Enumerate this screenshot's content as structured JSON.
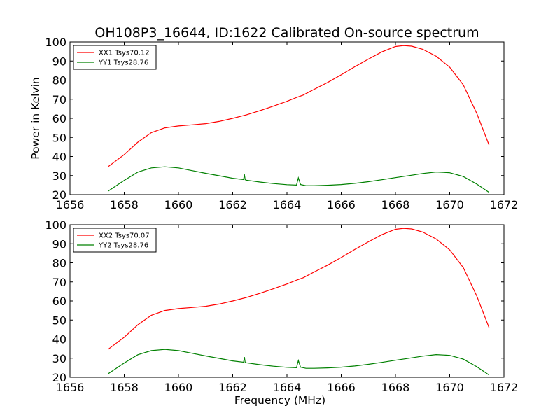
{
  "title": "OH108P3_16644, ID:1622 Calibrated On-source spectrum",
  "chart_data": [
    {
      "type": "line",
      "title": "OH108P3_16644, ID:1622 Calibrated On-source spectrum",
      "xlabel": "",
      "ylabel": "Power in Kelvin",
      "xlim": [
        1656,
        1672
      ],
      "ylim": [
        20,
        100
      ],
      "xticks": [
        "1656",
        "1658",
        "1660",
        "1662",
        "1664",
        "1666",
        "1668",
        "1670",
        "1672"
      ],
      "yticks": [
        "20",
        "30",
        "40",
        "50",
        "60",
        "70",
        "80",
        "90",
        "100"
      ],
      "grid": false,
      "legend_position": "top-left",
      "series": [
        {
          "name": "XX1 Tsys70.12",
          "color": "#ff0000",
          "points": [
            [
              1657.4,
              34.6
            ],
            [
              1658.0,
              41.0
            ],
            [
              1658.5,
              47.5
            ],
            [
              1659.0,
              52.5
            ],
            [
              1659.5,
              55.0
            ],
            [
              1660.0,
              56.0
            ],
            [
              1660.5,
              56.6
            ],
            [
              1661.0,
              57.2
            ],
            [
              1661.5,
              58.4
            ],
            [
              1662.0,
              60.0
            ],
            [
              1662.5,
              61.8
            ],
            [
              1663.0,
              64.0
            ],
            [
              1663.5,
              66.4
            ],
            [
              1664.0,
              68.9
            ],
            [
              1664.4,
              71.2
            ],
            [
              1664.6,
              72.2
            ],
            [
              1665.0,
              75.2
            ],
            [
              1665.5,
              78.8
            ],
            [
              1666.0,
              82.8
            ],
            [
              1666.5,
              87.0
            ],
            [
              1667.0,
              91.0
            ],
            [
              1667.5,
              94.8
            ],
            [
              1668.0,
              97.6
            ],
            [
              1668.3,
              98.1
            ],
            [
              1668.6,
              97.8
            ],
            [
              1669.0,
              96.2
            ],
            [
              1669.5,
              92.5
            ],
            [
              1670.0,
              86.8
            ],
            [
              1670.5,
              77.5
            ],
            [
              1671.0,
              62.5
            ],
            [
              1671.45,
              46.0
            ]
          ]
        },
        {
          "name": "YY1 Tsys28.76",
          "color": "#008000",
          "points": [
            [
              1657.4,
              21.8
            ],
            [
              1658.0,
              27.5
            ],
            [
              1658.5,
              31.8
            ],
            [
              1659.0,
              34.0
            ],
            [
              1659.5,
              34.6
            ],
            [
              1660.0,
              34.0
            ],
            [
              1660.5,
              32.6
            ],
            [
              1661.0,
              31.2
            ],
            [
              1661.5,
              29.9
            ],
            [
              1662.0,
              28.6
            ],
            [
              1662.4,
              27.9
            ],
            [
              1662.43,
              30.6
            ],
            [
              1662.46,
              27.8
            ],
            [
              1662.5,
              27.6
            ],
            [
              1663.0,
              26.6
            ],
            [
              1663.5,
              25.8
            ],
            [
              1664.0,
              25.2
            ],
            [
              1664.35,
              25.0
            ],
            [
              1664.42,
              28.8
            ],
            [
              1664.5,
              25.3
            ],
            [
              1664.7,
              24.7
            ],
            [
              1665.0,
              24.7
            ],
            [
              1665.5,
              24.9
            ],
            [
              1666.0,
              25.3
            ],
            [
              1666.5,
              25.9
            ],
            [
              1667.0,
              26.8
            ],
            [
              1667.5,
              27.8
            ],
            [
              1668.0,
              28.9
            ],
            [
              1668.5,
              30.0
            ],
            [
              1669.0,
              31.1
            ],
            [
              1669.5,
              31.9
            ],
            [
              1670.0,
              31.5
            ],
            [
              1670.5,
              29.5
            ],
            [
              1671.0,
              25.5
            ],
            [
              1671.45,
              21.2
            ]
          ]
        }
      ]
    },
    {
      "type": "line",
      "title": "",
      "xlabel": "Frequency (MHz)",
      "ylabel": "",
      "xlim": [
        1656,
        1672
      ],
      "ylim": [
        20,
        100
      ],
      "xticks": [
        "1656",
        "1658",
        "1660",
        "1662",
        "1664",
        "1666",
        "1668",
        "1670",
        "1672"
      ],
      "yticks": [
        "20",
        "30",
        "40",
        "50",
        "60",
        "70",
        "80",
        "90",
        "100"
      ],
      "grid": false,
      "legend_position": "top-left",
      "series": [
        {
          "name": "XX2 Tsys70.07",
          "color": "#ff0000",
          "points": [
            [
              1657.4,
              34.6
            ],
            [
              1658.0,
              41.0
            ],
            [
              1658.5,
              47.5
            ],
            [
              1659.0,
              52.5
            ],
            [
              1659.5,
              55.0
            ],
            [
              1660.0,
              56.0
            ],
            [
              1660.5,
              56.6
            ],
            [
              1661.0,
              57.2
            ],
            [
              1661.5,
              58.4
            ],
            [
              1662.0,
              60.0
            ],
            [
              1662.5,
              61.8
            ],
            [
              1663.0,
              64.0
            ],
            [
              1663.5,
              66.4
            ],
            [
              1664.0,
              68.9
            ],
            [
              1664.4,
              71.2
            ],
            [
              1664.6,
              72.2
            ],
            [
              1665.0,
              75.2
            ],
            [
              1665.5,
              78.8
            ],
            [
              1666.0,
              82.8
            ],
            [
              1666.5,
              87.0
            ],
            [
              1667.0,
              91.0
            ],
            [
              1667.5,
              94.8
            ],
            [
              1668.0,
              97.6
            ],
            [
              1668.3,
              98.1
            ],
            [
              1668.6,
              97.8
            ],
            [
              1669.0,
              96.2
            ],
            [
              1669.5,
              92.5
            ],
            [
              1670.0,
              86.8
            ],
            [
              1670.5,
              77.5
            ],
            [
              1671.0,
              62.5
            ],
            [
              1671.45,
              46.0
            ]
          ]
        },
        {
          "name": "YY2 Tsys28.76",
          "color": "#008000",
          "points": [
            [
              1657.4,
              21.8
            ],
            [
              1658.0,
              27.5
            ],
            [
              1658.5,
              31.8
            ],
            [
              1659.0,
              34.0
            ],
            [
              1659.5,
              34.6
            ],
            [
              1660.0,
              34.0
            ],
            [
              1660.5,
              32.6
            ],
            [
              1661.0,
              31.2
            ],
            [
              1661.5,
              29.9
            ],
            [
              1662.0,
              28.6
            ],
            [
              1662.4,
              27.9
            ],
            [
              1662.43,
              30.6
            ],
            [
              1662.46,
              27.8
            ],
            [
              1662.5,
              27.6
            ],
            [
              1663.0,
              26.6
            ],
            [
              1663.5,
              25.8
            ],
            [
              1664.0,
              25.2
            ],
            [
              1664.35,
              25.0
            ],
            [
              1664.42,
              28.8
            ],
            [
              1664.5,
              25.3
            ],
            [
              1664.7,
              24.7
            ],
            [
              1665.0,
              24.7
            ],
            [
              1665.5,
              24.9
            ],
            [
              1666.0,
              25.3
            ],
            [
              1666.5,
              25.9
            ],
            [
              1667.0,
              26.8
            ],
            [
              1667.5,
              27.8
            ],
            [
              1668.0,
              28.9
            ],
            [
              1668.5,
              30.0
            ],
            [
              1669.0,
              31.1
            ],
            [
              1669.5,
              31.9
            ],
            [
              1670.0,
              31.5
            ],
            [
              1670.5,
              29.5
            ],
            [
              1671.0,
              25.5
            ],
            [
              1671.45,
              21.2
            ]
          ]
        }
      ]
    }
  ]
}
